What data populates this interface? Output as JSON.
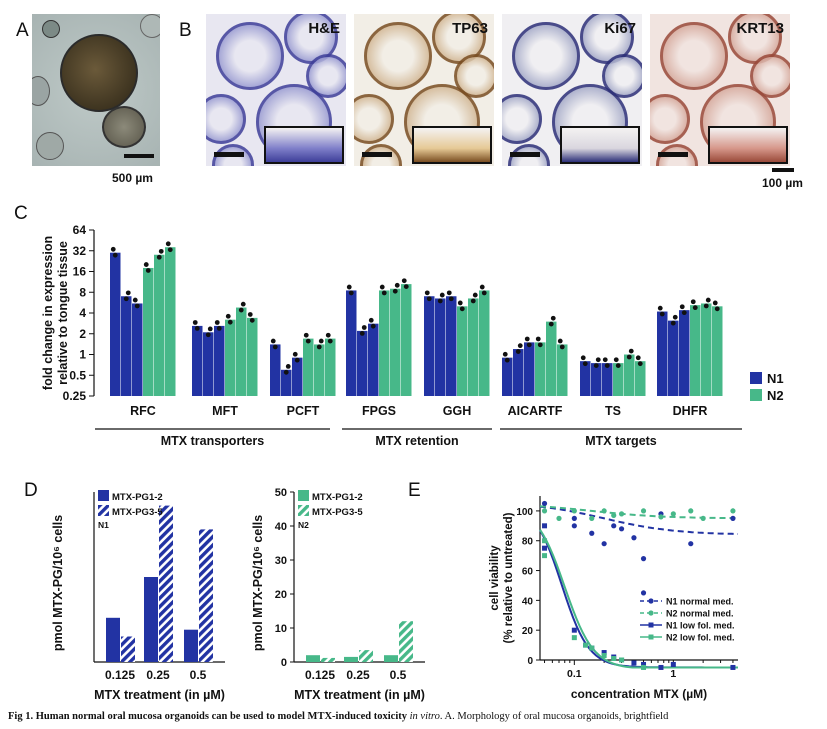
{
  "panels": {
    "A": {
      "label": "A",
      "scale": "500 µm"
    },
    "B": {
      "label": "B",
      "stains": [
        "H&E",
        "TP63",
        "Ki67",
        "KRT13"
      ],
      "scale": "100 µm"
    },
    "C": {
      "label": "C"
    },
    "D": {
      "label": "D"
    },
    "E": {
      "label": "E"
    }
  },
  "caption": {
    "bold": "Fig 1. Human normal oral mucosa organoids can be used to model MTX-induced toxicity",
    "italic": "in vitro",
    "rest": ". A. Morphology of oral mucosa organoids, brightfield"
  },
  "colors": {
    "N1": "#2233a3",
    "N2": "#47b889"
  },
  "chart_data": [
    {
      "id": "C",
      "type": "bar",
      "ylabel": "fold change in expression relative to tongue tissue",
      "yscale": "log2",
      "ylim": [
        0.25,
        64
      ],
      "yticks": [
        0.25,
        0.5,
        1,
        2,
        4,
        8,
        16,
        32,
        64
      ],
      "yticklabels": [
        "0.25",
        "0.5",
        "1",
        "2",
        "4",
        "8",
        "16",
        "32",
        "64"
      ],
      "categories": [
        "RFC",
        "MFT",
        "PCFT",
        "FPGS",
        "GGH",
        "AICARTF",
        "TS",
        "DHFR"
      ],
      "groups": [
        {
          "label": "MTX transporters",
          "categories": [
            "RFC",
            "MFT",
            "PCFT"
          ]
        },
        {
          "label": "MTX retention",
          "categories": [
            "FPGS",
            "GGH"
          ]
        },
        {
          "label": "MTX targets",
          "categories": [
            "AICARTF",
            "TS",
            "DHFR"
          ]
        }
      ],
      "legend": [
        "N1",
        "N2"
      ],
      "legend_position": "right",
      "series": [
        {
          "name": "N1",
          "values": [
            [
              30,
              7,
              5.5
            ],
            [
              2.6,
              2.1,
              2.6
            ],
            [
              1.4,
              0.6,
              0.9
            ],
            [
              8.5,
              2.2,
              2.8
            ],
            [
              7,
              6.5,
              7
            ],
            [
              0.9,
              1.2,
              1.5
            ],
            [
              0.8,
              0.75,
              0.75
            ],
            [
              4.2,
              3.1,
              4.4
            ]
          ]
        },
        {
          "name": "N2",
          "values": [
            [
              18,
              28,
              36
            ],
            [
              3.2,
              4.8,
              3.4
            ],
            [
              1.7,
              1.4,
              1.7
            ],
            [
              8.5,
              9,
              10.5
            ],
            [
              5,
              6.5,
              8.5
            ],
            [
              1.5,
              3,
              1.4
            ],
            [
              0.75,
              1.0,
              0.8
            ],
            [
              5.2,
              5.5,
              5
            ]
          ]
        }
      ]
    },
    {
      "id": "D-left",
      "type": "bar",
      "ylabel": "pmol MTX-PG/10^6 cells",
      "xlabel": "MTX treatment (in µM)",
      "ylim": [
        0,
        50
      ],
      "categories": [
        "0.125",
        "0.25",
        "0.5"
      ],
      "legend_title": "N1",
      "legend": [
        "MTX-PG1-2",
        "MTX-PG3-5"
      ],
      "series": [
        {
          "name": "MTX-PG1-2",
          "values": [
            13,
            25,
            9.5
          ]
        },
        {
          "name": "MTX-PG3-5",
          "values": [
            7.5,
            46,
            39
          ]
        }
      ]
    },
    {
      "id": "D-right",
      "type": "bar",
      "ylabel": "pmol MTX-PG/10^6 cells",
      "xlabel": "MTX treatment (in µM)",
      "ylim": [
        0,
        50
      ],
      "yticks": [
        0,
        10,
        20,
        30,
        40,
        50
      ],
      "categories": [
        "0.125",
        "0.25",
        "0.5"
      ],
      "legend_title": "N2",
      "legend": [
        "MTX-PG1-2",
        "MTX-PG3-5"
      ],
      "series": [
        {
          "name": "MTX-PG1-2",
          "values": [
            2,
            1.5,
            2
          ]
        },
        {
          "name": "MTX-PG3-5",
          "values": [
            1.2,
            3.5,
            12
          ]
        }
      ]
    },
    {
      "id": "E",
      "type": "scatter",
      "xlabel": "concentration MTX (µM)",
      "ylabel": "cell viability (% relative to untreated)",
      "xscale": "log",
      "xlim": [
        0.045,
        4.5
      ],
      "ylim": [
        0,
        110
      ],
      "yticks": [
        0,
        20,
        40,
        60,
        80,
        100
      ],
      "xticks": [
        0.1,
        1
      ],
      "xticklabels": [
        "0.1",
        "1"
      ],
      "legend_position": "bottom-right",
      "series": [
        {
          "name": "N1 normal med.",
          "x": [
            0.05,
            0.1,
            0.1,
            0.15,
            0.2,
            0.25,
            0.3,
            0.4,
            0.5,
            0.5,
            0.75,
            1.5,
            4
          ],
          "y": [
            105,
            95,
            90,
            85,
            78,
            90,
            88,
            82,
            45,
            68,
            98,
            78,
            95
          ]
        },
        {
          "name": "N2 normal med.",
          "x": [
            0.05,
            0.07,
            0.1,
            0.15,
            0.2,
            0.25,
            0.3,
            0.5,
            0.75,
            1,
            1.5,
            2,
            4
          ],
          "y": [
            100,
            95,
            100,
            95,
            100,
            97,
            98,
            100,
            96,
            98,
            100,
            95,
            100
          ]
        },
        {
          "name": "N1 low fol. med.",
          "x": [
            0.05,
            0.05,
            0.1,
            0.13,
            0.15,
            0.2,
            0.25,
            0.3,
            0.4,
            0.5,
            0.75,
            1,
            4
          ],
          "y": [
            90,
            75,
            20,
            10,
            8,
            5,
            2,
            0,
            -2,
            -3,
            -5,
            -3,
            -5
          ]
        },
        {
          "name": "N2 low fol. med.",
          "x": [
            0.05,
            0.05,
            0.1,
            0.13,
            0.15,
            0.2,
            0.25,
            0.3,
            0.5
          ],
          "y": [
            80,
            70,
            15,
            10,
            8,
            3,
            1,
            0,
            -5
          ]
        }
      ]
    }
  ]
}
